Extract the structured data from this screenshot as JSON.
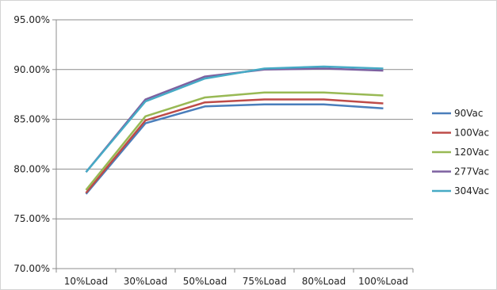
{
  "chart_data": {
    "type": "line",
    "title": "",
    "xlabel": "",
    "ylabel": "",
    "categories": [
      "10%Load",
      "30%Load",
      "50%Load",
      "75%Load",
      "80%Load",
      "100%Load"
    ],
    "ylim": [
      70.0,
      95.0
    ],
    "yticks": [
      "70.00%",
      "75.00%",
      "80.00%",
      "85.00%",
      "90.00%",
      "95.00%"
    ],
    "grid": "horizontal",
    "legend_position": "right",
    "series": [
      {
        "name": "90Vac",
        "color": "#4a7ebb",
        "values": [
          77.5,
          84.6,
          86.3,
          86.5,
          86.5,
          86.1
        ]
      },
      {
        "name": "100Vac",
        "color": "#be4b48",
        "values": [
          77.6,
          84.9,
          86.7,
          87.0,
          87.0,
          86.6
        ]
      },
      {
        "name": "120Vac",
        "color": "#98b954",
        "values": [
          77.9,
          85.3,
          87.2,
          87.7,
          87.7,
          87.4
        ]
      },
      {
        "name": "277Vac",
        "color": "#7d60a0",
        "values": [
          79.7,
          87.0,
          89.3,
          90.0,
          90.1,
          89.9
        ]
      },
      {
        "name": "304Vac",
        "color": "#46aac5",
        "values": [
          79.7,
          86.8,
          89.1,
          90.1,
          90.3,
          90.1
        ]
      }
    ]
  }
}
